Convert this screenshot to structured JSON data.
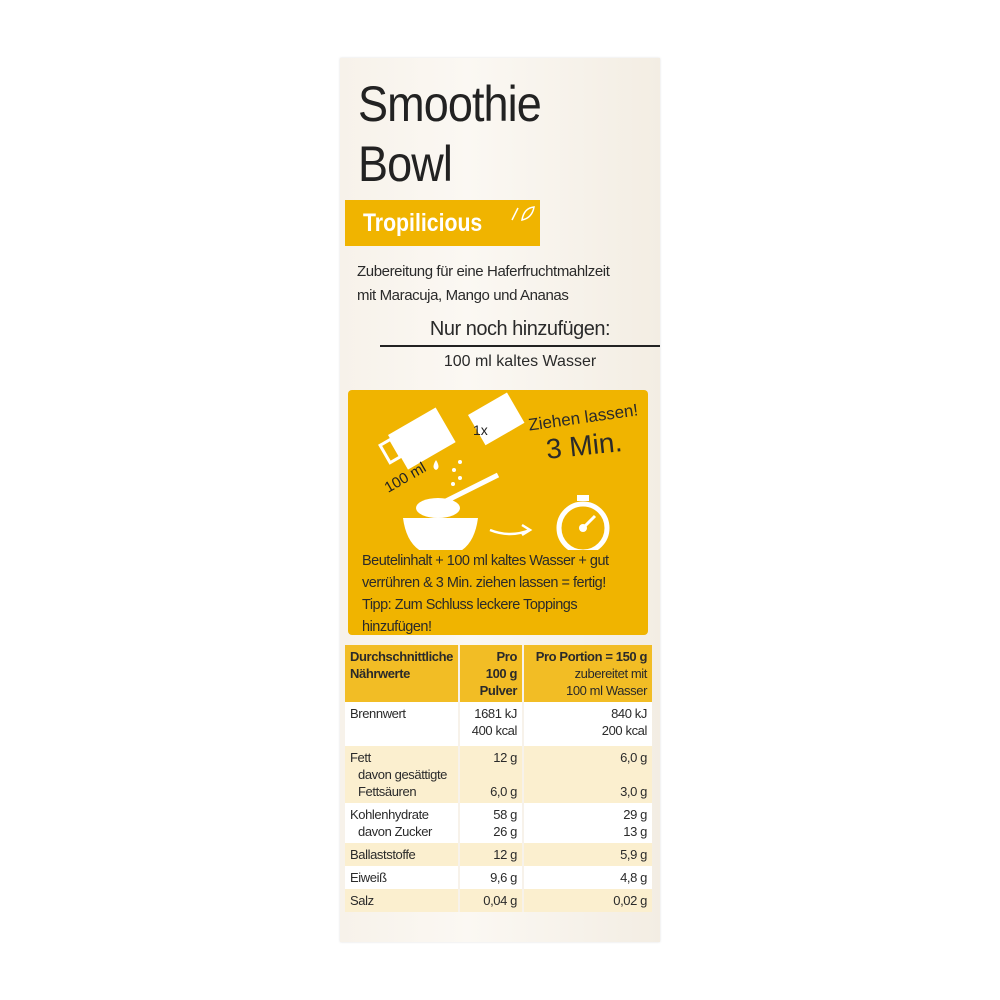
{
  "product": {
    "title_line1": "Smoothie",
    "title_line2": "Bowl",
    "variant": "Tropilicious",
    "description": [
      "Zubereitung für eine Haferfruchtmahlzeit",
      "mit Maracuja, Mango und Ananas"
    ],
    "add_heading": "Nur noch hinzufügen:",
    "add_item": "100 ml kaltes Wasser"
  },
  "instructions": {
    "jug_label": "100 ml",
    "sachet_label": "1x",
    "wait_label": "Ziehen lassen!",
    "wait_time": "3 Min.",
    "steps": [
      "Beutelinhalt + 100 ml kaltes Wasser + gut",
      "verrühren & 3 Min. ziehen lassen = fertig!",
      "Tipp: Zum Schluss leckere Toppings hinzufügen!"
    ]
  },
  "colors": {
    "accent": "#f0b400",
    "header": "#f2bd25",
    "row_alt": "#fbefcf"
  },
  "nutrition": {
    "headers": {
      "col1": [
        "Durchschnittliche",
        "Nährwerte"
      ],
      "col2": [
        "Pro",
        "100 g",
        "Pulver"
      ],
      "col3_main": "Pro Portion = 150 g",
      "col3_sub": [
        "zubereitet mit",
        "100 ml Wasser"
      ]
    },
    "rows": [
      {
        "label": [
          "Brennwert"
        ],
        "per100": [
          "1681 kJ",
          "400 kcal"
        ],
        "portion": [
          "840 kJ",
          "200 kcal"
        ]
      },
      {
        "label": [
          "Fett",
          "davon gesättigte",
          "Fettsäuren"
        ],
        "per100": [
          "12 g",
          "",
          "6,0 g"
        ],
        "portion": [
          "6,0 g",
          "",
          "3,0 g"
        ]
      },
      {
        "label": [
          "Kohlenhydrate",
          "davon Zucker"
        ],
        "per100": [
          "58 g",
          "26 g"
        ],
        "portion": [
          "29 g",
          "13 g"
        ]
      },
      {
        "label": [
          "Ballaststoffe"
        ],
        "per100": [
          "12 g"
        ],
        "portion": [
          "5,9 g"
        ]
      },
      {
        "label": [
          "Eiweiß"
        ],
        "per100": [
          "9,6 g"
        ],
        "portion": [
          "4,8 g"
        ]
      },
      {
        "label": [
          "Salz"
        ],
        "per100": [
          "0,04 g"
        ],
        "portion": [
          "0,02 g"
        ]
      }
    ]
  }
}
